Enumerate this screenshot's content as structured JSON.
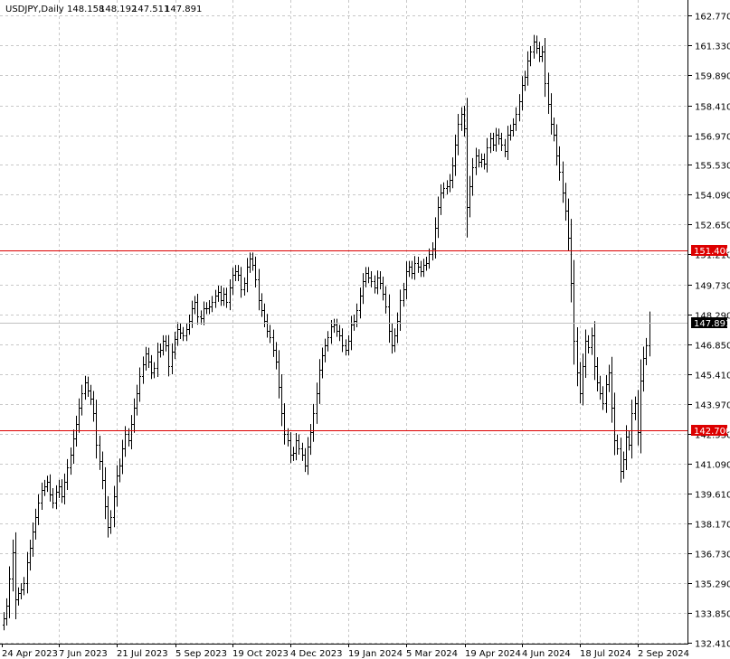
{
  "chart_data": {
    "type": "bar",
    "symbol_header": "USDJPY,Daily",
    "ohlc": {
      "open": "148.158",
      "high": "148.192",
      "low": "147.511",
      "close": "147.891"
    },
    "ylim": [
      132.2,
      163.3
    ],
    "y_ticks": [
      "162.770",
      "161.330",
      "159.890",
      "158.410",
      "156.970",
      "155.530",
      "154.090",
      "152.650",
      "151.210",
      "149.730",
      "148.290",
      "146.850",
      "145.410",
      "143.970",
      "142.530",
      "141.090",
      "139.610",
      "138.170",
      "136.730",
      "135.290",
      "133.850",
      "132.410"
    ],
    "x_ticks": [
      "24 Apr 2023",
      "7 Jun 2023",
      "21 Jul 2023",
      "5 Sep 2023",
      "19 Oct 2023",
      "4 Dec 2023",
      "19 Jan 2024",
      "5 Mar 2024",
      "19 Apr 2024",
      "4 Jun 2024",
      "18 Jul 2024",
      "2 Sep 2024"
    ],
    "horizontal_lines": [
      {
        "value": 151.4,
        "label": "151.400",
        "color": "#dd0000"
      },
      {
        "value": 142.7,
        "label": "142.700",
        "color": "#dd0000"
      }
    ],
    "current_price": {
      "value": 147.891,
      "label": "147.891",
      "color": "#c0c0c0"
    },
    "grid": true,
    "bar_color": "#000000",
    "closes": [
      133.6,
      134.2,
      135.5,
      136.8,
      134.5,
      134.8,
      135.0,
      135.3,
      136.3,
      137.0,
      137.8,
      138.5,
      139.2,
      139.8,
      140.0,
      140.2,
      139.6,
      139.2,
      139.7,
      140.0,
      139.5,
      140.2,
      140.9,
      141.5,
      142.3,
      143.0,
      143.8,
      144.5,
      145.0,
      144.6,
      144.2,
      143.5,
      142.0,
      141.2,
      140.3,
      139.0,
      138.0,
      138.5,
      139.5,
      140.5,
      141.0,
      141.8,
      142.5,
      142.2,
      143.0,
      143.8,
      144.5,
      145.3,
      145.9,
      146.4,
      146.0,
      145.5,
      145.7,
      146.5,
      146.6,
      147.0,
      146.8,
      145.8,
      146.5,
      147.1,
      147.6,
      147.4,
      147.3,
      147.6,
      148.0,
      148.6,
      148.9,
      148.2,
      148.1,
      148.6,
      148.6,
      148.7,
      148.9,
      149.2,
      149.4,
      149.0,
      149.3,
      148.9,
      149.6,
      150.2,
      150.4,
      150.2,
      149.5,
      149.8,
      150.6,
      151.0,
      150.7,
      150.0,
      149.0,
      148.5,
      148.0,
      147.5,
      147.2,
      146.6,
      146.0,
      144.8,
      143.5,
      142.5,
      142.2,
      141.5,
      141.6,
      142.2,
      141.8,
      141.5,
      141.0,
      141.9,
      142.6,
      143.5,
      144.5,
      145.6,
      146.3,
      146.8,
      147.2,
      147.7,
      147.8,
      147.5,
      147.3,
      146.8,
      146.6,
      147.0,
      147.8,
      148.0,
      148.5,
      149.2,
      149.9,
      150.3,
      150.1,
      149.9,
      149.6,
      150.1,
      149.8,
      149.3,
      148.7,
      147.5,
      146.8,
      147.3,
      148.0,
      149.0,
      149.5,
      150.4,
      150.6,
      150.3,
      150.8,
      150.6,
      150.4,
      150.7,
      150.8,
      151.2,
      151.5,
      152.5,
      153.5,
      154.2,
      154.4,
      154.5,
      154.8,
      155.5,
      156.5,
      157.5,
      158.0,
      157.3,
      153.5,
      154.5,
      155.4,
      156.0,
      155.7,
      155.8,
      155.6,
      156.4,
      156.8,
      156.5,
      157.0,
      156.8,
      156.5,
      156.2,
      157.0,
      157.2,
      157.5,
      158.0,
      158.6,
      159.4,
      159.8,
      160.6,
      161.0,
      161.5,
      161.2,
      160.8,
      161.0,
      159.5,
      158.5,
      157.5,
      157.0,
      156.0,
      155.2,
      154.2,
      153.3,
      152.0,
      149.8,
      147.0,
      145.5,
      144.5,
      145.8,
      147.0,
      146.7,
      147.3,
      145.8,
      145.0,
      144.5,
      144.0,
      144.9,
      145.5,
      143.8,
      142.2,
      141.8,
      140.7,
      141.3,
      142.4,
      142.0,
      143.5,
      144.0,
      142.6,
      145.1,
      146.2,
      146.8,
      147.9
    ]
  }
}
